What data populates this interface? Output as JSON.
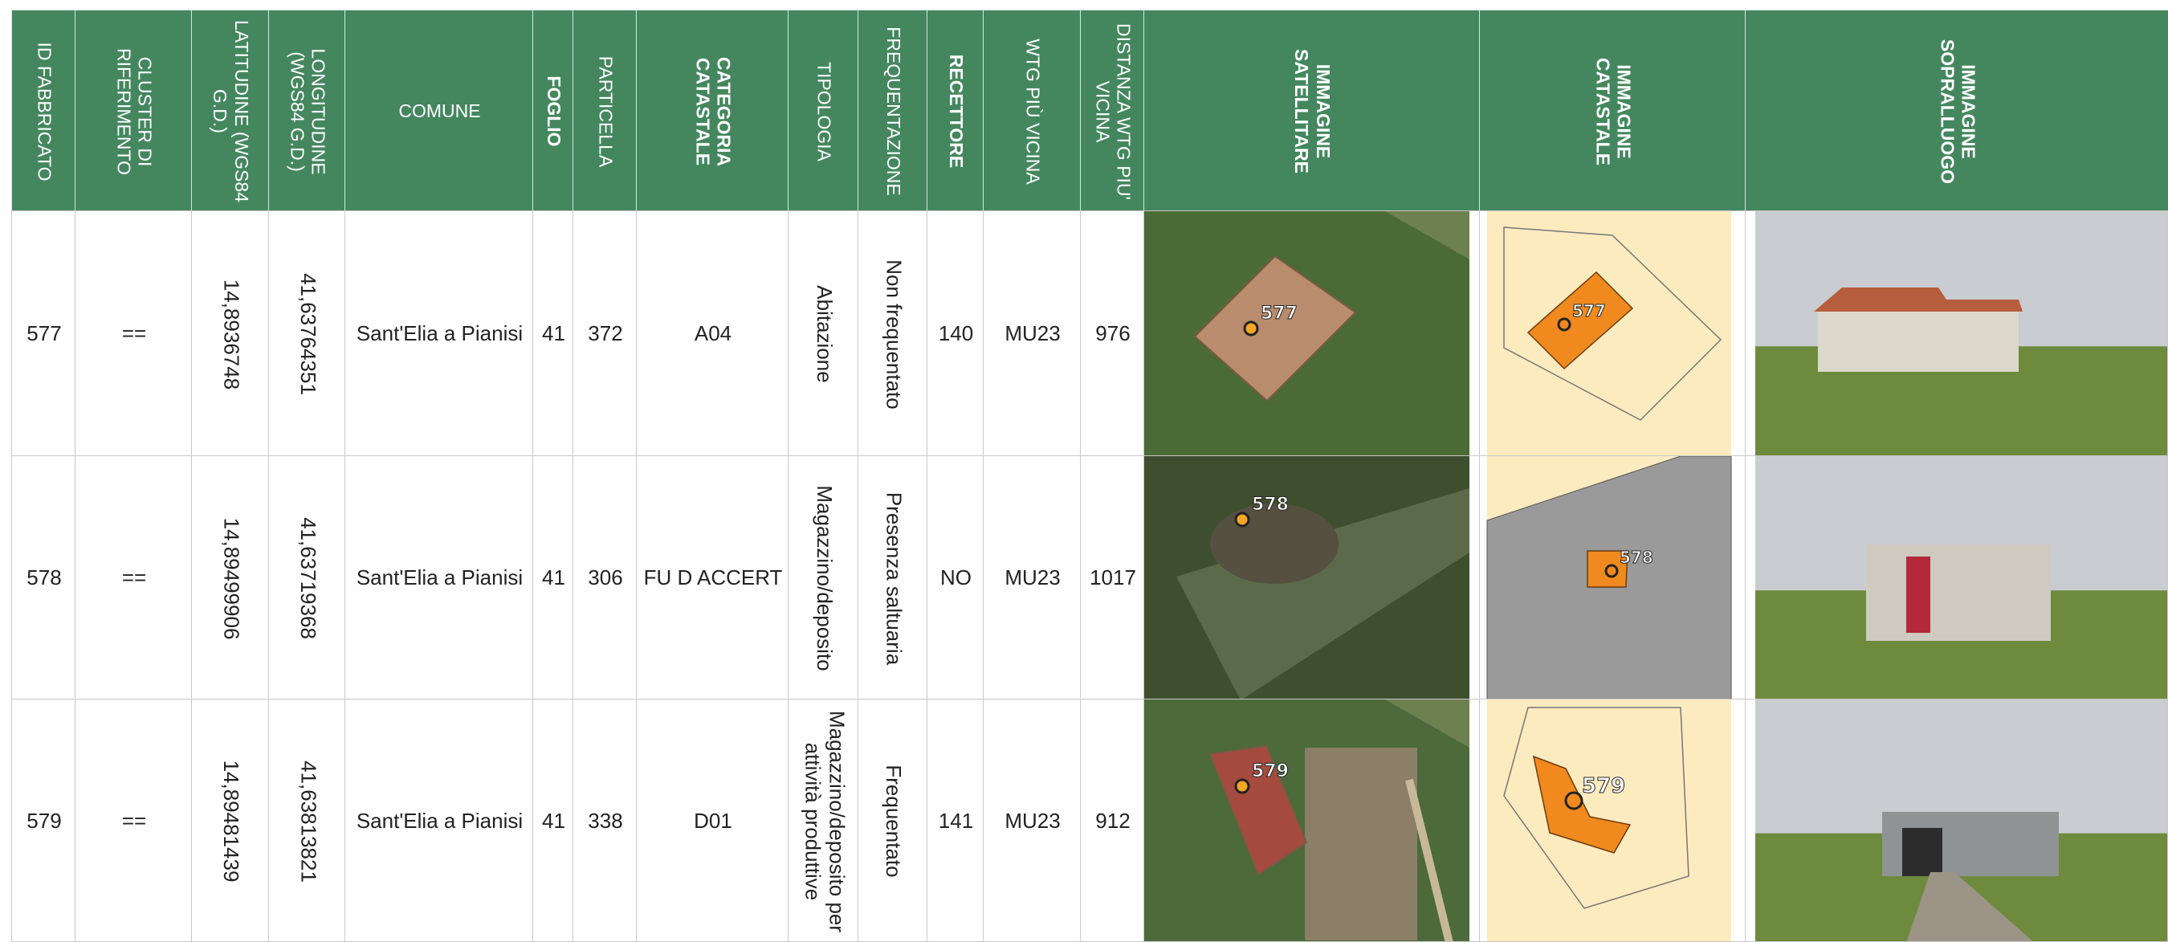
{
  "table": {
    "header": [
      "ID FABBRICATO",
      "CLUSTER DI RIFERIMENTO",
      "LATITUDINE (WGS84 G.D.)",
      "LONGITUDINE (WGS84 G.D.)",
      "COMUNE",
      "FOGLIO",
      "PARTICELLA",
      "CATEGORIA CATASTALE",
      "TIPOLOGIA",
      "FREQUENTAZIONE",
      "RECETTORE",
      "WTG PIÙ VICINA",
      "DISTANZA WTG PIU' VICINA",
      "IMMAGINE SATELLITARE",
      "IMMAGINE CATASTALE",
      "IMMAGINE SOPRALLUOGO"
    ],
    "rows": [
      {
        "cells": [
          "577",
          "==",
          "14,8936748",
          "41,63764351",
          "Sant'Elia a Pianisi",
          "41",
          "372",
          "A04",
          "Abitazione",
          "Non frequentato",
          "140",
          "MU23",
          "976"
        ],
        "marker_label": "577"
      },
      {
        "cells": [
          "578",
          "==",
          "14,89499906",
          "41,63719368",
          "Sant'Elia a Pianisi",
          "41",
          "306",
          "FU D ACCERT",
          "Magazzino/deposito",
          "Presenza saltuaria",
          "NO",
          "MU23",
          "1017"
        ],
        "marker_label": "578"
      },
      {
        "cells": [
          "579",
          "==",
          "14,89481439",
          "41,63813821",
          "Sant'Elia a Pianisi",
          "41",
          "338",
          "D01",
          "Magazzino/deposito per attività produttive",
          "Frequentato",
          "141",
          "MU23",
          "912"
        ],
        "marker_label": "579"
      }
    ]
  }
}
